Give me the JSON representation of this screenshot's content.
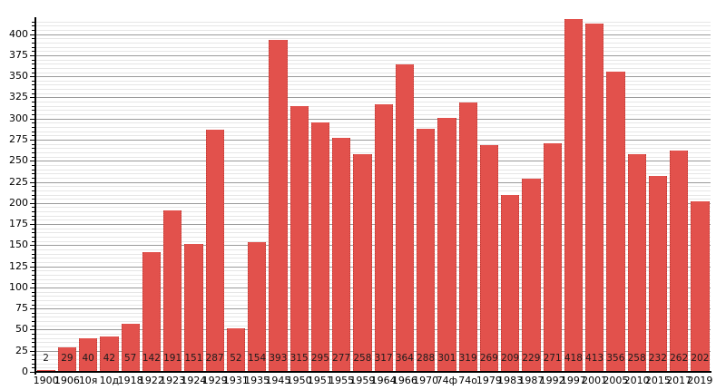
{
  "chart_data": {
    "type": "bar",
    "title": "",
    "xlabel": "",
    "ylabel": "",
    "categories": [
      "1900",
      "1906",
      "10я",
      "10д",
      "1918",
      "1922",
      "1923",
      "1924",
      "1929",
      "1931",
      "1935",
      "1945",
      "1950",
      "1951",
      "1955",
      "1959",
      "1964",
      "1966",
      "1970",
      "74ф",
      "74о",
      "1979",
      "1983",
      "1987",
      "1992",
      "1997",
      "2001",
      "2005",
      "2010",
      "2015",
      "2017",
      "2019"
    ],
    "values": [
      2,
      29,
      40,
      42,
      57,
      142,
      191,
      151,
      287,
      52,
      154,
      393,
      315,
      295,
      277,
      258,
      317,
      364,
      288,
      301,
      319,
      269,
      209,
      229,
      271,
      418,
      413,
      356,
      258,
      232,
      262,
      202
    ],
    "value_labels_shown": true,
    "ylim": [
      0,
      420
    ],
    "yticks": [
      0,
      25,
      50,
      75,
      100,
      125,
      150,
      175,
      200,
      225,
      250,
      275,
      300,
      325,
      350,
      375,
      400
    ],
    "ytick_step": 25,
    "minor_grid_step": 5,
    "grid": true,
    "legend": null,
    "colors": {
      "bar_fill": "#e2514c",
      "bar_edge": "#c03a34",
      "major_grid": "#9b9b9b",
      "minor_grid": "#e6e6e6",
      "axis": "#000000",
      "text": "#000000",
      "value_text": "#1c1c1c",
      "background": "#ffffff"
    }
  }
}
